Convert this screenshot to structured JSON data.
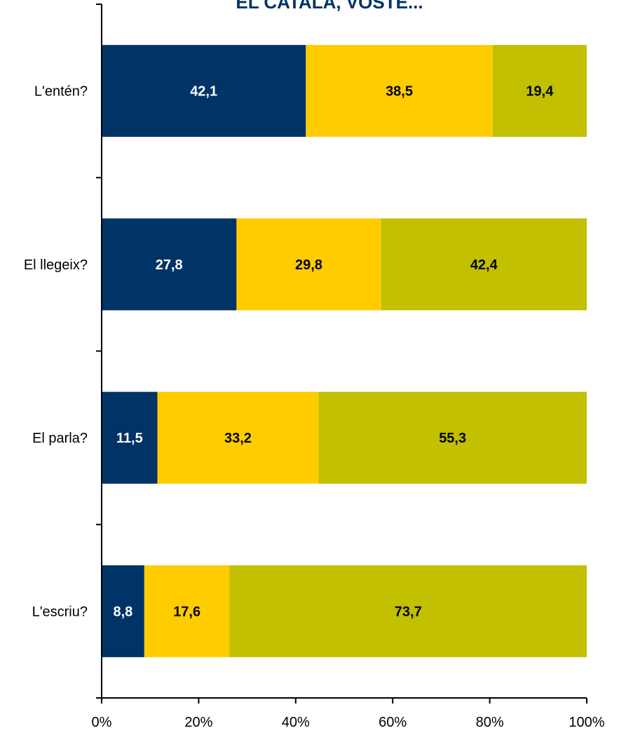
{
  "chart_data": {
    "type": "bar",
    "orientation": "horizontal",
    "stacked": "percent",
    "title": "EL CATALÀ, VOSTÈ...",
    "categories": [
      "L'entén?",
      "El llegeix?",
      "El parla?",
      "L'escriu?"
    ],
    "series": [
      {
        "color": "#003366",
        "label_color": "#ffffff",
        "values": [
          42.1,
          27.8,
          11.5,
          8.8
        ],
        "labels": [
          "42,1",
          "27,8",
          "11,5",
          "8,8"
        ]
      },
      {
        "color": "#ffcc00",
        "label_color": "#000000",
        "values": [
          38.5,
          29.8,
          33.2,
          17.6
        ],
        "labels": [
          "38,5",
          "29,8",
          "33,2",
          "17,6"
        ]
      },
      {
        "color": "#c2c000",
        "label_color": "#000000",
        "values": [
          19.4,
          42.4,
          55.3,
          73.7
        ],
        "labels": [
          "19,4",
          "42,4",
          "55,3",
          "73,7"
        ]
      }
    ],
    "x_ticks": [
      "0%",
      "20%",
      "40%",
      "60%",
      "80%",
      "100%"
    ],
    "xlim": [
      0,
      100
    ],
    "grid": false,
    "legend": "none",
    "title_color": "#003366"
  }
}
